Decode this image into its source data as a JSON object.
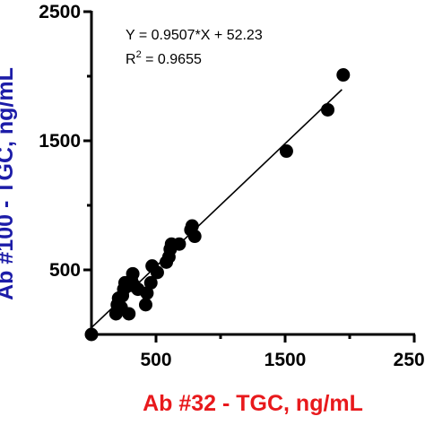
{
  "chart_data": {
    "type": "scatter",
    "xlabel": "Ab #32 - TGC, ng/mL",
    "ylabel": "Ab #100 - TGC, ng/mL",
    "xlim": [
      0,
      2500
    ],
    "ylim": [
      0,
      2500
    ],
    "x_ticks": [
      500,
      1500,
      2500
    ],
    "y_ticks": [
      500,
      1500,
      2500
    ],
    "x_tick_labels": [
      "500",
      "1500",
      "2500"
    ],
    "y_tick_labels": [
      "500",
      "1500",
      "2500"
    ],
    "grid": false,
    "colors": {
      "xlabel": "#e8191c",
      "ylabel": "#1c1ca8",
      "points": "#000000",
      "line": "#000000"
    },
    "annotations": {
      "equation": "Y = 0.9507*X + 52.23",
      "r2_prefix": "R",
      "r2_sup": "2",
      "r2_value": " = 0.9655"
    },
    "fit": {
      "slope": 0.9507,
      "intercept": 52.23,
      "x_range": [
        0,
        1940
      ]
    },
    "points": [
      {
        "x": 0,
        "y": 0
      },
      {
        "x": 190,
        "y": 160
      },
      {
        "x": 200,
        "y": 230
      },
      {
        "x": 210,
        "y": 280
      },
      {
        "x": 230,
        "y": 210
      },
      {
        "x": 240,
        "y": 300
      },
      {
        "x": 250,
        "y": 350
      },
      {
        "x": 260,
        "y": 400
      },
      {
        "x": 290,
        "y": 160
      },
      {
        "x": 300,
        "y": 380
      },
      {
        "x": 310,
        "y": 420
      },
      {
        "x": 320,
        "y": 470
      },
      {
        "x": 330,
        "y": 380
      },
      {
        "x": 360,
        "y": 350
      },
      {
        "x": 420,
        "y": 230
      },
      {
        "x": 430,
        "y": 320
      },
      {
        "x": 460,
        "y": 400
      },
      {
        "x": 470,
        "y": 530
      },
      {
        "x": 510,
        "y": 480
      },
      {
        "x": 580,
        "y": 560
      },
      {
        "x": 600,
        "y": 600
      },
      {
        "x": 610,
        "y": 660
      },
      {
        "x": 620,
        "y": 700
      },
      {
        "x": 680,
        "y": 700
      },
      {
        "x": 770,
        "y": 810
      },
      {
        "x": 780,
        "y": 840
      },
      {
        "x": 800,
        "y": 760
      },
      {
        "x": 1510,
        "y": 1420
      },
      {
        "x": 1830,
        "y": 1740
      },
      {
        "x": 1950,
        "y": 2010
      }
    ]
  }
}
